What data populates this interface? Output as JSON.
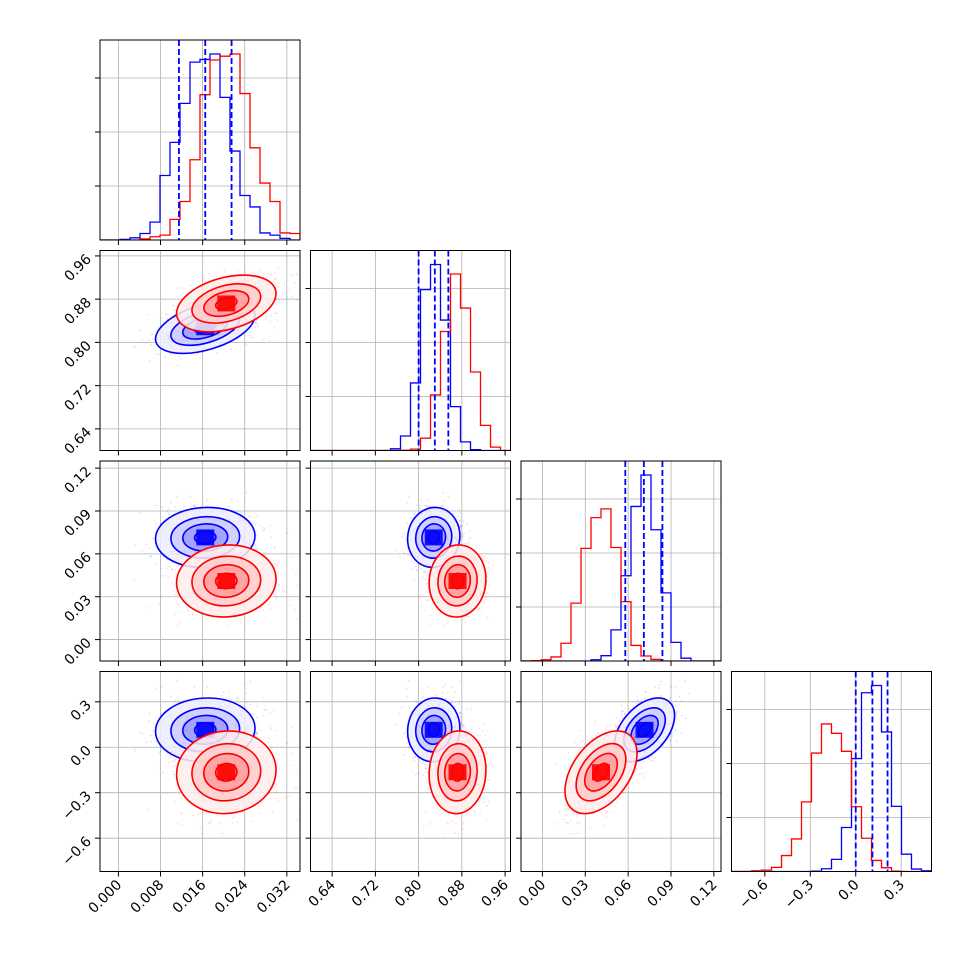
{
  "chart_data": {
    "type": "corner",
    "title": "",
    "parameters": [
      "",
      "",
      "",
      ""
    ],
    "series": [
      {
        "name": "",
        "color": "#0000ff",
        "means": [
          0.0165,
          0.828,
          0.0715,
          0.115
        ],
        "sds": [
          0.0045,
          0.023,
          0.01,
          0.1
        ],
        "correlations": [
          [
            0,
            1,
            0.45
          ],
          [
            0,
            2,
            0.05
          ],
          [
            0,
            3,
            0.05
          ],
          [
            1,
            2,
            0.05
          ],
          [
            1,
            3,
            0.05
          ],
          [
            2,
            3,
            0.45
          ]
        ],
        "quantiles": [
          [
            0.0115,
            0.0165,
            0.0215
          ],
          [
            0.8,
            0.83,
            0.855
          ],
          [
            0.058,
            0.071,
            0.084
          ],
          [
            0.0,
            0.11,
            0.21
          ]
        ]
      },
      {
        "name": "",
        "color": "#ff0000",
        "means": [
          0.0205,
          0.872,
          0.041,
          -0.165
        ],
        "sds": [
          0.0045,
          0.025,
          0.012,
          0.13
        ],
        "correlations": [
          [
            0,
            1,
            0.35
          ],
          [
            0,
            2,
            0.05
          ],
          [
            0,
            3,
            0.05
          ],
          [
            1,
            2,
            0.05
          ],
          [
            1,
            3,
            0.05
          ],
          [
            2,
            3,
            0.45
          ]
        ],
        "quantiles": null
      }
    ],
    "quantile_line_color": "#0000ff",
    "axes": [
      {
        "range": [
          -0.0035,
          0.0345
        ],
        "ticks": [
          0.0,
          0.008,
          0.016,
          0.024,
          0.032
        ],
        "tick_labels": [
          "0.000",
          "0.008",
          "0.016",
          "0.024",
          "0.032"
        ]
      },
      {
        "range": [
          0.6,
          0.97
        ],
        "ticks": [
          0.64,
          0.72,
          0.8,
          0.88,
          0.96
        ],
        "tick_labels": [
          "0.64",
          "0.72",
          "0.80",
          "0.88",
          "0.96"
        ]
      },
      {
        "range": [
          -0.015,
          0.125
        ],
        "ticks": [
          0.0,
          0.03,
          0.06,
          0.09,
          0.12
        ],
        "tick_labels": [
          "0.00",
          "0.03",
          "0.06",
          "0.09",
          "0.12"
        ]
      },
      {
        "range": [
          -0.82,
          0.5
        ],
        "ticks": [
          -0.6,
          -0.3,
          0.0,
          0.3
        ],
        "tick_labels": [
          "−0.6",
          "−0.3",
          "0.0",
          "0.3"
        ]
      }
    ],
    "diagonal_y_ticks": 4,
    "grid": true,
    "legend": "none"
  }
}
